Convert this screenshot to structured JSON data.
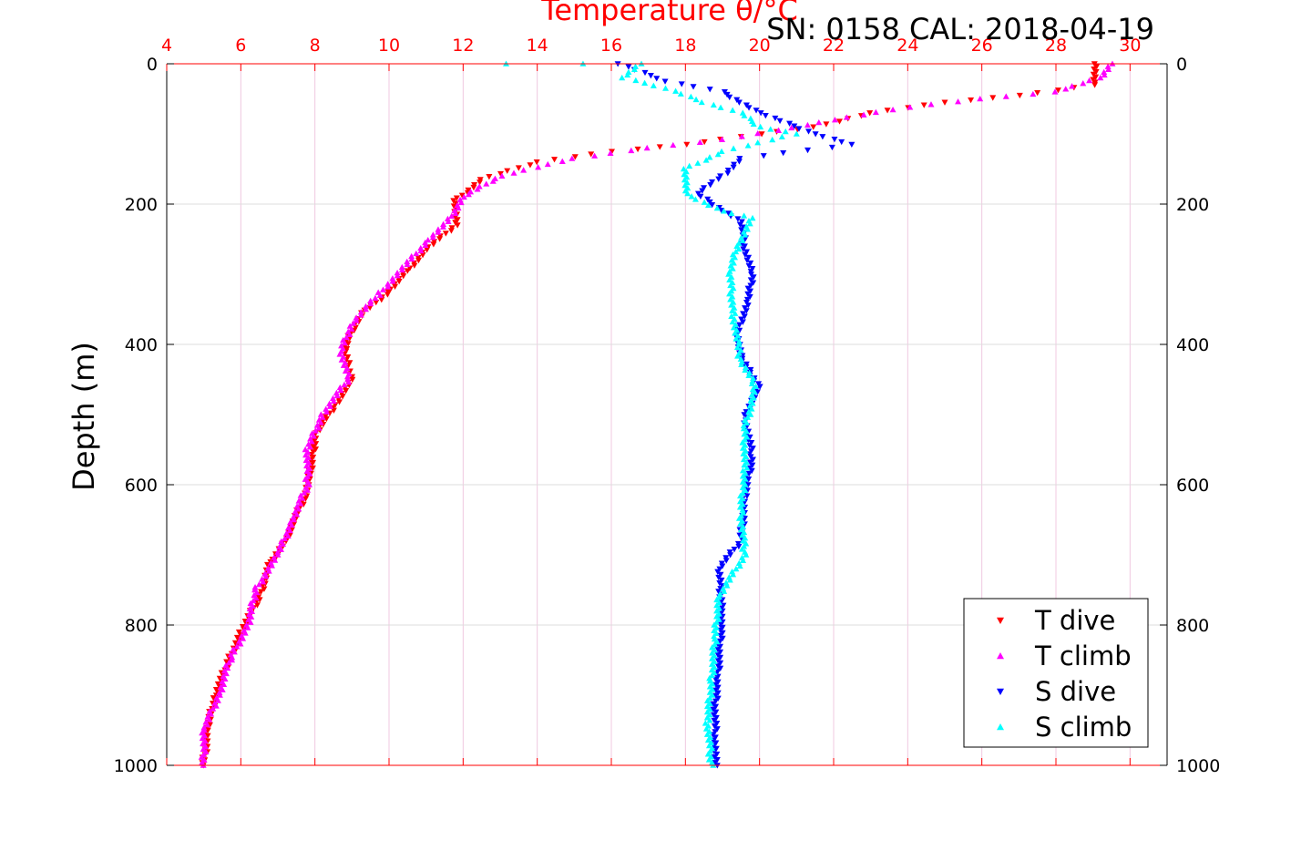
{
  "header": {
    "title": "Temperature θ/°C",
    "serial_cal": "SN: 0158  CAL: 2018-04-19"
  },
  "colors": {
    "t_dive": "#ff0000",
    "t_climb": "#ff00ff",
    "s_dive": "#0000ff",
    "s_climb": "#00ffff",
    "top_axis": "#ff0000",
    "grid_vertical": "#f0c8e0",
    "grid_horizontal": "#dddddd"
  },
  "chart_data": {
    "type": "scatter",
    "title": "Temperature θ/°C",
    "ylabel": "Depth (m)",
    "xlim": [
      4,
      31
    ],
    "ylim": [
      0,
      1000
    ],
    "y_reversed": true,
    "x_ticks": [
      4,
      6,
      8,
      10,
      12,
      14,
      16,
      18,
      20,
      22,
      24,
      26,
      28,
      30
    ],
    "y_ticks": [
      0,
      200,
      400,
      600,
      800,
      1000
    ],
    "grid": true,
    "legend_position": "bottom-right",
    "series": [
      {
        "name": "T dive",
        "marker": "triangle-down",
        "color": "#ff0000",
        "points": [
          [
            29.1,
            0
          ],
          [
            29.0,
            30
          ],
          [
            27.0,
            45
          ],
          [
            25.0,
            55
          ],
          [
            23.0,
            70
          ],
          [
            21.5,
            90
          ],
          [
            20.0,
            100
          ],
          [
            18.0,
            115
          ],
          [
            16.0,
            125
          ],
          [
            14.0,
            140
          ],
          [
            12.5,
            165
          ],
          [
            11.8,
            195
          ],
          [
            11.8,
            230
          ],
          [
            11.0,
            265
          ],
          [
            10.5,
            295
          ],
          [
            10.0,
            325
          ],
          [
            9.3,
            355
          ],
          [
            9.0,
            380
          ],
          [
            8.8,
            410
          ],
          [
            9.0,
            450
          ],
          [
            8.5,
            490
          ],
          [
            8.0,
            530
          ],
          [
            7.9,
            580
          ],
          [
            7.7,
            620
          ],
          [
            7.2,
            680
          ],
          [
            6.8,
            710
          ],
          [
            6.5,
            760
          ],
          [
            6.0,
            810
          ],
          [
            5.6,
            860
          ],
          [
            5.3,
            900
          ],
          [
            5.1,
            950
          ],
          [
            5.0,
            1000
          ]
        ]
      },
      {
        "name": "T climb",
        "marker": "triangle-up",
        "color": "#ff00ff",
        "points": [
          [
            29.5,
            0
          ],
          [
            29.2,
            20
          ],
          [
            28.0,
            40
          ],
          [
            26.0,
            50
          ],
          [
            24.0,
            62
          ],
          [
            22.0,
            80
          ],
          [
            20.5,
            95
          ],
          [
            19.0,
            108
          ],
          [
            17.0,
            120
          ],
          [
            15.0,
            135
          ],
          [
            13.0,
            160
          ],
          [
            12.0,
            190
          ],
          [
            11.6,
            225
          ],
          [
            11.0,
            255
          ],
          [
            10.4,
            290
          ],
          [
            9.7,
            330
          ],
          [
            9.0,
            370
          ],
          [
            8.7,
            410
          ],
          [
            8.9,
            450
          ],
          [
            8.2,
            500
          ],
          [
            7.8,
            550
          ],
          [
            7.8,
            600
          ],
          [
            7.4,
            650
          ],
          [
            7.0,
            700
          ],
          [
            6.4,
            750
          ],
          [
            6.2,
            800
          ],
          [
            5.7,
            850
          ],
          [
            5.4,
            900
          ],
          [
            5.0,
            950
          ],
          [
            5.0,
            1000
          ]
        ]
      },
      {
        "name": "S dive",
        "marker": "triangle-down",
        "color": "#0000ff",
        "points": [
          [
            16.2,
            0
          ],
          [
            17.5,
            25
          ],
          [
            19.0,
            40
          ],
          [
            20.0,
            70
          ],
          [
            21.5,
            100
          ],
          [
            22.5,
            115
          ],
          [
            19.5,
            135
          ],
          [
            19.0,
            160
          ],
          [
            18.3,
            185
          ],
          [
            19.5,
            225
          ],
          [
            19.6,
            260
          ],
          [
            19.8,
            300
          ],
          [
            19.7,
            340
          ],
          [
            19.4,
            380
          ],
          [
            19.5,
            420
          ],
          [
            20.0,
            460
          ],
          [
            19.6,
            500
          ],
          [
            19.8,
            560
          ],
          [
            19.6,
            620
          ],
          [
            19.5,
            680
          ],
          [
            18.9,
            720
          ],
          [
            19.0,
            780
          ],
          [
            18.9,
            850
          ],
          [
            18.8,
            920
          ],
          [
            18.8,
            1000
          ]
        ]
      },
      {
        "name": "S climb",
        "marker": "triangle-up",
        "color": "#00ffff",
        "points": [
          [
            13.1,
            0
          ],
          [
            15.2,
            0
          ],
          [
            16.8,
            0
          ],
          [
            16.3,
            20
          ],
          [
            17.5,
            35
          ],
          [
            18.5,
            55
          ],
          [
            19.5,
            70
          ],
          [
            20.0,
            90
          ],
          [
            21.0,
            100
          ],
          [
            19.0,
            125
          ],
          [
            18.0,
            150
          ],
          [
            18.0,
            185
          ],
          [
            19.0,
            210
          ],
          [
            19.8,
            220
          ],
          [
            19.4,
            260
          ],
          [
            19.2,
            300
          ],
          [
            19.3,
            360
          ],
          [
            19.4,
            400
          ],
          [
            19.5,
            425
          ],
          [
            19.9,
            460
          ],
          [
            19.6,
            520
          ],
          [
            19.6,
            580
          ],
          [
            19.5,
            640
          ],
          [
            19.6,
            700
          ],
          [
            18.9,
            760
          ],
          [
            18.8,
            820
          ],
          [
            18.7,
            880
          ],
          [
            18.6,
            940
          ],
          [
            18.7,
            1000
          ]
        ]
      }
    ]
  }
}
